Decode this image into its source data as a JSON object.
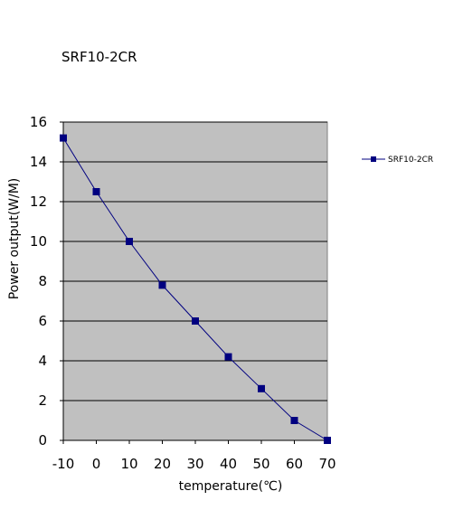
{
  "chart_data": {
    "type": "line",
    "title": "SRF10-2CR",
    "xlabel": "temperature(℃)",
    "ylabel": "Power output(W/M)",
    "x": [
      -10,
      0,
      10,
      20,
      30,
      40,
      50,
      60,
      70
    ],
    "xlim": [
      -10,
      70
    ],
    "ylim": [
      0,
      16
    ],
    "xticks": [
      "-10",
      "0",
      "10",
      "20",
      "30",
      "40",
      "50",
      "60",
      "70"
    ],
    "yticks": [
      "0",
      "2",
      "4",
      "6",
      "8",
      "10",
      "12",
      "14",
      "16"
    ],
    "grid": true,
    "legend": "right",
    "series": [
      {
        "name": "SRF10-2CR",
        "values": [
          15.2,
          12.5,
          10.0,
          7.8,
          6.0,
          4.2,
          2.6,
          1.0,
          0.0
        ],
        "color": "#000080"
      }
    ],
    "plot_background": "#c0c0c0"
  }
}
